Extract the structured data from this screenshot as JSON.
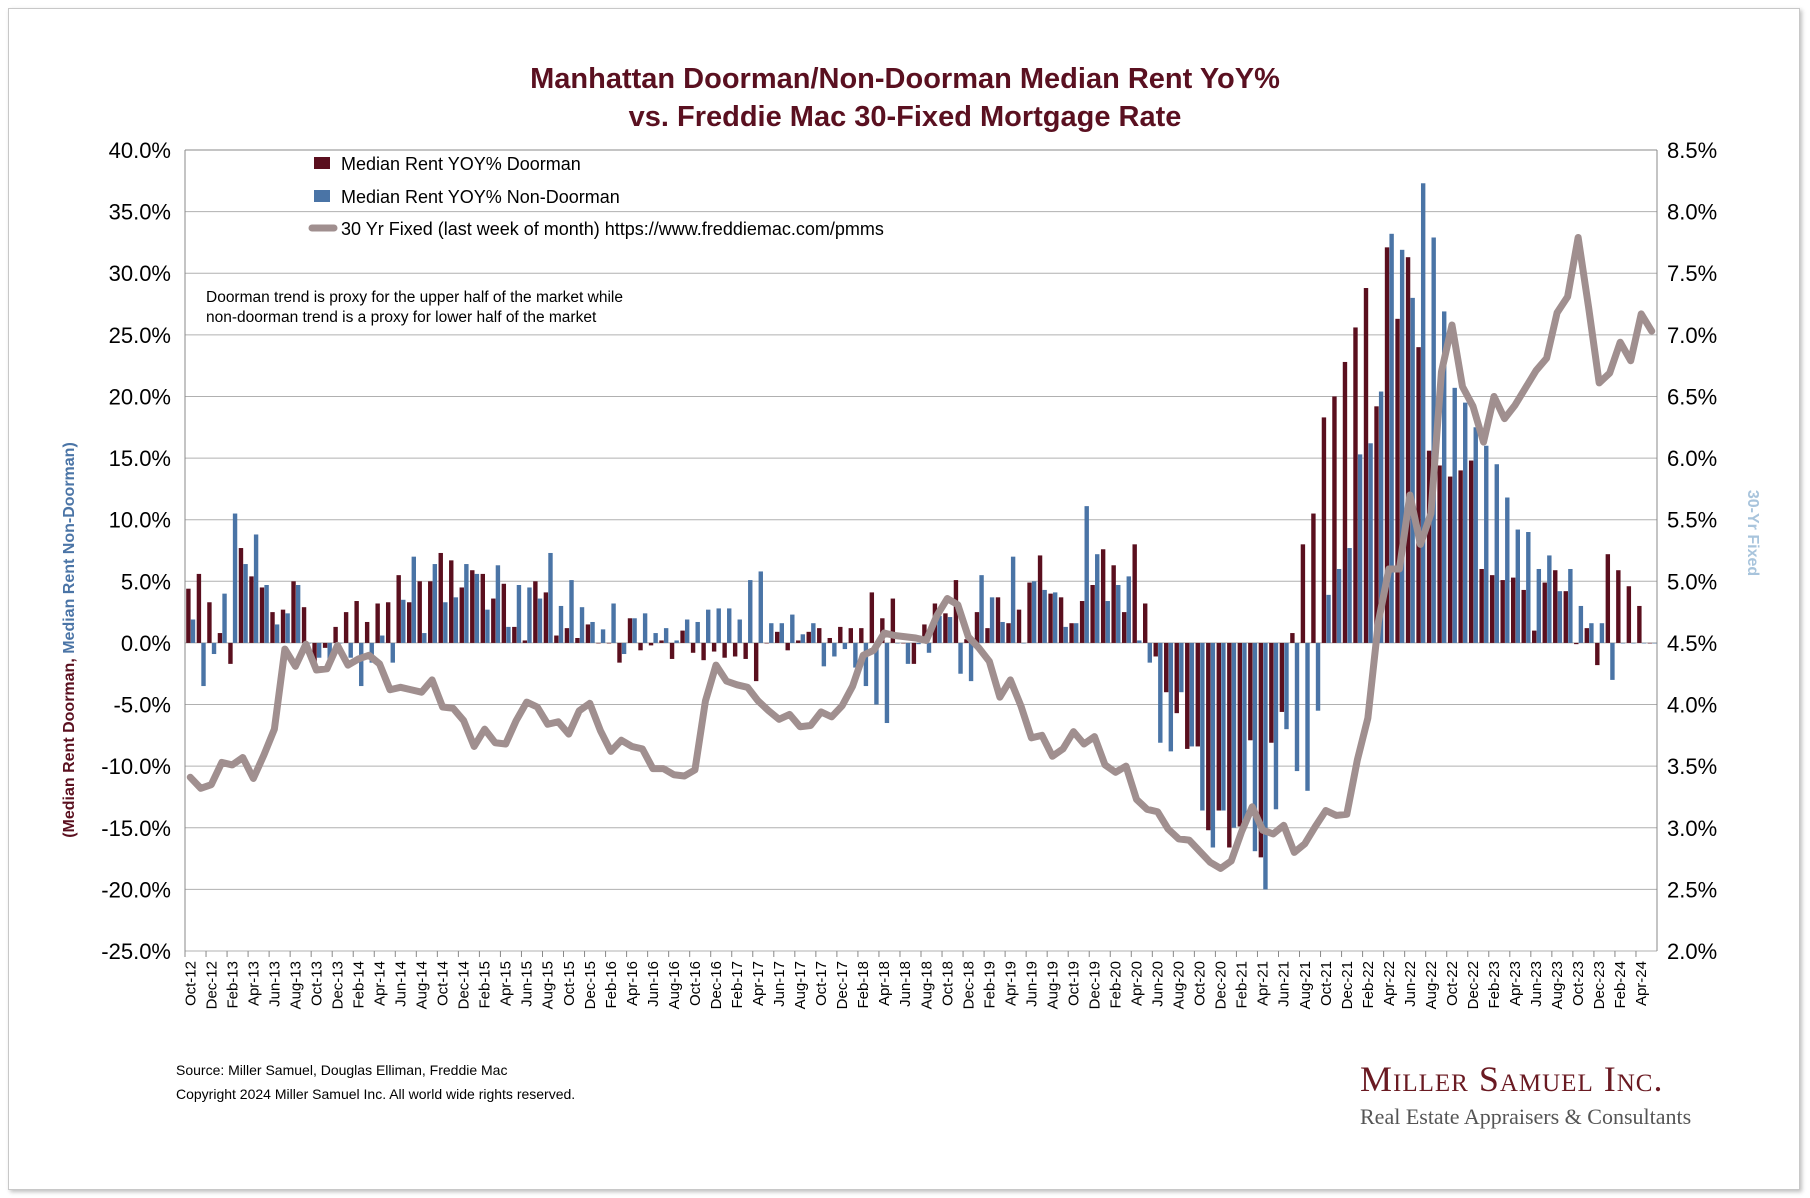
{
  "colors": {
    "doorman": "#5a0f1e",
    "non_doorman": "#4a74a6",
    "rate": "#a08f8f",
    "title": "#5a1020",
    "right_axis_title": "#a8c4dc"
  },
  "footer": {
    "source": "Source: Miller Samuel, Douglas Elliman, Freddie Mac",
    "copyright": "Copyright 2024 Miller Samuel Inc.  All world wide rights reserved."
  },
  "logo": {
    "line1": "Miller Samuel Inc.",
    "line2": "Real Estate Appraisers & Consultants"
  },
  "chart_data": {
    "type": "bar+line",
    "title_line1": "Manhattan Doorman/Non-Doorman Median Rent YoY%",
    "title_line2": "vs. Freddie Mac 30-Fixed Mortgage Rate",
    "ylabel_part1": "(Median Rent Doorman, ",
    "ylabel_part2": "Median Rent Non-Doorman)",
    "y2label": "30-Yr Fixed",
    "ylim": [
      -25,
      40
    ],
    "y2lim": [
      2.0,
      8.5
    ],
    "yticks": [
      "40.0%",
      "35.0%",
      "30.0%",
      "25.0%",
      "20.0%",
      "15.0%",
      "10.0%",
      "5.0%",
      "0.0%",
      "-5.0%",
      "-10.0%",
      "-15.0%",
      "-20.0%",
      "-25.0%"
    ],
    "y2ticks": [
      "8.5%",
      "8.0%",
      "7.5%",
      "7.0%",
      "6.5%",
      "6.0%",
      "5.5%",
      "5.0%",
      "4.5%",
      "4.0%",
      "3.5%",
      "3.0%",
      "2.5%",
      "2.0%"
    ],
    "legend": [
      "Median Rent YOY% Doorman",
      "Median Rent YOY% Non-Doorman",
      "30 Yr Fixed (last week of month) https://www.freddiemac.com/pmms"
    ],
    "legend_position": "top-left",
    "annotation_line1": "Doorman trend is proxy for the upper half of the market while",
    "annotation_line2": "non-doorman trend is a proxy for lower half of the market",
    "start_month": "Oct-12",
    "xtick_labels": [
      "Oct-12",
      "Dec-12",
      "Feb-13",
      "Apr-13",
      "Jun-13",
      "Aug-13",
      "Oct-13",
      "Dec-13",
      "Feb-14",
      "Apr-14",
      "Jun-14",
      "Aug-14",
      "Oct-14",
      "Dec-14",
      "Feb-15",
      "Apr-15",
      "Jun-15",
      "Aug-15",
      "Oct-15",
      "Dec-15",
      "Feb-16",
      "Apr-16",
      "Jun-16",
      "Aug-16",
      "Oct-16",
      "Dec-16",
      "Feb-17",
      "Apr-17",
      "Jun-17",
      "Aug-17",
      "Oct-17",
      "Dec-17",
      "Feb-18",
      "Apr-18",
      "Jun-18",
      "Aug-18",
      "Oct-18",
      "Dec-18",
      "Feb-19",
      "Apr-19",
      "Jun-19",
      "Aug-19",
      "Oct-19",
      "Dec-19",
      "Feb-20",
      "Apr-20",
      "Jun-20",
      "Aug-20",
      "Oct-20",
      "Dec-20",
      "Feb-21",
      "Apr-21",
      "Jun-21",
      "Aug-21",
      "Oct-21",
      "Dec-21",
      "Feb-22",
      "Apr-22",
      "Jun-22",
      "Aug-22",
      "Oct-22",
      "Dec-22",
      "Feb-23",
      "Apr-23",
      "Jun-23",
      "Aug-23",
      "Oct-23",
      "Dec-23",
      "Feb-24",
      "Apr-24"
    ],
    "series": [
      {
        "name": "Median Rent YOY% Doorman",
        "axis": "left",
        "type": "bar",
        "values": [
          4.4,
          5.6,
          3.3,
          0.8,
          -1.7,
          7.7,
          5.4,
          4.5,
          2.5,
          2.7,
          5.0,
          2.9,
          -2.0,
          -0.4,
          1.3,
          2.5,
          3.4,
          1.7,
          3.2,
          3.3,
          5.5,
          3.3,
          5.0,
          5.0,
          7.3,
          6.7,
          4.5,
          5.9,
          5.6,
          3.6,
          4.8,
          1.3,
          0.2,
          5.0,
          4.1,
          0.6,
          1.2,
          0.4,
          1.5,
          0,
          0,
          -1.6,
          2.0,
          -0.6,
          -0.2,
          0.2,
          -1.3,
          1.0,
          -0.8,
          -1.4,
          -0.7,
          -1.2,
          -1.1,
          -1.3,
          -3.1,
          0,
          0.9,
          -0.6,
          0.2,
          0.9,
          1.2,
          0.4,
          1.3,
          1.2,
          1.2,
          4.1,
          2.0,
          3.6,
          0,
          -1.7,
          1.5,
          3.2,
          2.4,
          5.1,
          0.3,
          2.5,
          1.2,
          3.7,
          1.6,
          2.7,
          4.9,
          7.1,
          4.0,
          3.7,
          1.6,
          3.4,
          4.7,
          7.6,
          6.3,
          2.5,
          8.0,
          3.2,
          -1.1,
          -4.0,
          -5.7,
          -8.6,
          -8.4,
          -15.2,
          -13.6,
          -16.6,
          -14.9,
          -7.9,
          -17.4,
          -8.1,
          -5.6,
          0.8,
          8.0,
          10.5,
          18.3,
          20.0,
          22.8,
          25.6,
          28.8,
          19.2,
          32.1,
          26.3,
          31.3,
          24.0,
          15.6,
          14.4,
          13.5,
          14.0,
          14.8,
          6.0,
          5.5,
          5.1,
          5.3,
          4.3,
          1.0,
          4.9,
          5.9,
          4.2,
          -0.1,
          1.2,
          -1.8,
          7.2,
          5.9,
          4.6,
          3.0,
          0
        ]
      },
      {
        "name": "Median Rent YOY% Non-Doorman",
        "axis": "left",
        "type": "bar",
        "values": [
          1.9,
          -3.5,
          -0.9,
          4.0,
          10.5,
          6.4,
          8.8,
          4.7,
          1.5,
          2.4,
          4.7,
          0,
          -1.2,
          -1.6,
          0,
          -1.2,
          -3.5,
          -1.6,
          0.6,
          -1.6,
          3.5,
          7.0,
          0.8,
          6.4,
          3.3,
          3.7,
          6.4,
          5.6,
          2.7,
          6.3,
          1.3,
          4.7,
          4.5,
          3.6,
          7.3,
          3.0,
          5.1,
          2.9,
          1.7,
          1.1,
          3.2,
          -0.9,
          2.0,
          2.4,
          0.8,
          1.2,
          0.2,
          1.9,
          1.7,
          2.7,
          2.8,
          2.8,
          1.9,
          5.1,
          5.8,
          1.6,
          1.6,
          2.3,
          0.7,
          1.6,
          -1.9,
          -1.1,
          -0.5,
          -2.0,
          -3.5,
          -5.0,
          -6.5,
          0,
          -1.7,
          -0.1,
          -0.8,
          2.2,
          2.1,
          -2.5,
          -3.1,
          5.5,
          3.7,
          1.7,
          7.0,
          0,
          5.0,
          4.3,
          4.1,
          1.3,
          1.6,
          11.1,
          7.2,
          3.4,
          4.7,
          5.4,
          0.2,
          -1.6,
          -8.1,
          -8.8,
          -4.0,
          -8.4,
          -13.6,
          -16.6,
          -13.6,
          -15.0,
          -15.0,
          -16.9,
          -20.0,
          -13.5,
          -7.0,
          -10.4,
          -12.0,
          -5.5,
          3.9,
          6.0,
          7.7,
          15.3,
          16.2,
          20.4,
          33.2,
          31.9,
          28.0,
          37.3,
          32.9,
          26.9,
          20.7,
          19.5,
          17.5,
          16.0,
          14.5,
          11.8,
          9.2,
          9.0,
          6.0,
          7.1,
          4.2,
          6.0,
          3.0,
          1.6,
          1.6,
          -3.0,
          0,
          0,
          0,
          0
        ]
      },
      {
        "name": "30 Yr Fixed (last week of month)",
        "axis": "right",
        "type": "line",
        "values": [
          3.41,
          3.32,
          3.35,
          3.53,
          3.51,
          3.57,
          3.4,
          3.59,
          3.8,
          4.45,
          4.31,
          4.49,
          4.28,
          4.29,
          4.48,
          4.32,
          4.37,
          4.4,
          4.33,
          4.12,
          4.14,
          4.12,
          4.1,
          4.2,
          3.98,
          3.97,
          3.87,
          3.66,
          3.8,
          3.69,
          3.68,
          3.87,
          4.02,
          3.98,
          3.84,
          3.86,
          3.76,
          3.95,
          4.01,
          3.79,
          3.62,
          3.71,
          3.66,
          3.64,
          3.48,
          3.48,
          3.43,
          3.42,
          3.47,
          4.03,
          4.32,
          4.19,
          4.16,
          4.14,
          4.03,
          3.95,
          3.88,
          3.92,
          3.82,
          3.83,
          3.94,
          3.9,
          3.99,
          4.15,
          4.4,
          4.44,
          4.58,
          4.56,
          4.55,
          4.54,
          4.52,
          4.72,
          4.86,
          4.81,
          4.55,
          4.46,
          4.35,
          4.06,
          4.2,
          3.99,
          3.73,
          3.75,
          3.58,
          3.64,
          3.78,
          3.68,
          3.74,
          3.51,
          3.45,
          3.5,
          3.23,
          3.15,
          3.13,
          2.99,
          2.91,
          2.9,
          2.81,
          2.72,
          2.67,
          2.73,
          2.97,
          3.17,
          2.98,
          2.95,
          3.02,
          2.8,
          2.87,
          3.01,
          3.14,
          3.1,
          3.11,
          3.55,
          3.89,
          4.67,
          5.1,
          5.1,
          5.7,
          5.3,
          5.55,
          6.7,
          7.08,
          6.58,
          6.42,
          6.13,
          6.5,
          6.32,
          6.43,
          6.57,
          6.71,
          6.81,
          7.18,
          7.31,
          7.79,
          7.22,
          6.61,
          6.69,
          6.94,
          6.79,
          7.17,
          7.03
        ]
      }
    ]
  }
}
